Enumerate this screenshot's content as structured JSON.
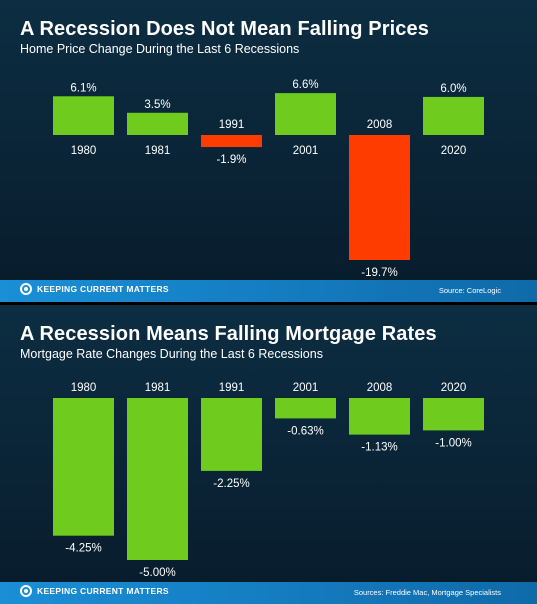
{
  "brand": {
    "name": "KEEPING CURRENT MATTERS",
    "logo_icon": "kcm-logo-icon"
  },
  "colors": {
    "positive": "#6fcc1f",
    "negative": "#ff3c00",
    "footer": "#1a8fd6"
  },
  "panels": [
    {
      "title": "A Recession Does Not Mean Falling Prices",
      "subtitle": "Home Price Change During the Last 6 Recessions",
      "source": "Source: CoreLogic"
    },
    {
      "title": "A Recession Means Falling Mortgage Rates",
      "subtitle": "Mortgage Rate Changes During the Last 6 Recessions",
      "source": "Sources: Freddie Mac, Mortgage Specialists"
    }
  ],
  "chart_data": [
    {
      "type": "bar",
      "title": "A Recession Does Not Mean Falling Prices",
      "subtitle": "Home Price Change During the Last 6 Recessions",
      "categories": [
        "1980",
        "1981",
        "1991",
        "2001",
        "2008",
        "2020"
      ],
      "values": [
        6.1,
        3.5,
        -1.9,
        6.6,
        -19.7,
        6.0
      ],
      "labels": [
        "6.1%",
        "3.5%",
        "-1.9%",
        "6.6%",
        "-19.7%",
        "6.0%"
      ],
      "ylim": [
        -19.7,
        6.6
      ],
      "xlabel": "",
      "ylabel": "",
      "grid": false
    },
    {
      "type": "bar",
      "title": "A Recession Means Falling Mortgage Rates",
      "subtitle": "Mortgage Rate Changes During the Last 6 Recessions",
      "categories": [
        "1980",
        "1981",
        "1991",
        "2001",
        "2008",
        "2020"
      ],
      "values": [
        -4.25,
        -5.0,
        -2.25,
        -0.63,
        -1.13,
        -1.0
      ],
      "labels": [
        "-4.25%",
        "-5.00%",
        "-2.25%",
        "-0.63%",
        "-1.13%",
        "-1.00%"
      ],
      "ylim": [
        -5.0,
        0
      ],
      "xlabel": "",
      "ylabel": "",
      "grid": false
    }
  ]
}
